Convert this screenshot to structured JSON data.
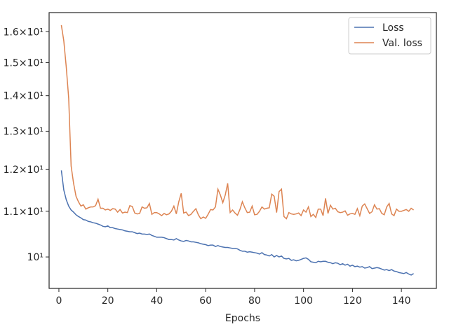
{
  "chart_data": {
    "type": "line",
    "xlabel": "Epochs",
    "yscale": "log",
    "legend": "upper right",
    "x": [
      1,
      2,
      3,
      4,
      5,
      6,
      7,
      8,
      9,
      10,
      11,
      12,
      13,
      14,
      15,
      16,
      17,
      18,
      19,
      20,
      21,
      22,
      23,
      24,
      25,
      26,
      27,
      28,
      29,
      30,
      31,
      32,
      33,
      34,
      35,
      36,
      37,
      38,
      39,
      40,
      41,
      42,
      43,
      44,
      45,
      46,
      47,
      48,
      49,
      50,
      51,
      52,
      53,
      54,
      55,
      56,
      57,
      58,
      59,
      60,
      61,
      62,
      63,
      64,
      65,
      66,
      67,
      68,
      69,
      70,
      71,
      72,
      73,
      74,
      75,
      76,
      77,
      78,
      79,
      80,
      81,
      82,
      83,
      84,
      85,
      86,
      87,
      88,
      89,
      90,
      91,
      92,
      93,
      94,
      95,
      96,
      97,
      98,
      99,
      100,
      101,
      102,
      103,
      104,
      105,
      106,
      107,
      108,
      109,
      110,
      111,
      112,
      113,
      114,
      115,
      116,
      117,
      118,
      119,
      120,
      121,
      122,
      123,
      124,
      125,
      126,
      127,
      128,
      129,
      130,
      131,
      132,
      133,
      134,
      135,
      136,
      137,
      138,
      139,
      140,
      141,
      142,
      143,
      144,
      145
    ],
    "series": [
      {
        "name": "Loss",
        "color": "#4c72b0",
        "values": [
          11.98,
          11.5,
          11.27,
          11.12,
          11.03,
          10.98,
          10.92,
          10.88,
          10.85,
          10.81,
          10.8,
          10.77,
          10.76,
          10.74,
          10.73,
          10.71,
          10.69,
          10.66,
          10.65,
          10.67,
          10.63,
          10.63,
          10.61,
          10.6,
          10.59,
          10.58,
          10.56,
          10.55,
          10.54,
          10.54,
          10.52,
          10.5,
          10.51,
          10.49,
          10.49,
          10.48,
          10.49,
          10.46,
          10.44,
          10.42,
          10.42,
          10.42,
          10.41,
          10.39,
          10.37,
          10.37,
          10.36,
          10.39,
          10.36,
          10.34,
          10.33,
          10.35,
          10.34,
          10.32,
          10.32,
          10.31,
          10.3,
          10.28,
          10.27,
          10.26,
          10.24,
          10.25,
          10.25,
          10.22,
          10.24,
          10.22,
          10.21,
          10.2,
          10.2,
          10.19,
          10.18,
          10.18,
          10.17,
          10.14,
          10.12,
          10.12,
          10.1,
          10.11,
          10.1,
          10.09,
          10.08,
          10.06,
          10.09,
          10.05,
          10.04,
          10.02,
          10.05,
          10.0,
          10.03,
          10.0,
          10.02,
          9.97,
          9.96,
          9.97,
          9.93,
          9.94,
          9.92,
          9.93,
          9.95,
          9.97,
          9.98,
          9.95,
          9.9,
          9.89,
          9.88,
          9.91,
          9.9,
          9.91,
          9.91,
          9.89,
          9.88,
          9.86,
          9.88,
          9.87,
          9.84,
          9.86,
          9.83,
          9.85,
          9.81,
          9.83,
          9.8,
          9.81,
          9.79,
          9.8,
          9.77,
          9.78,
          9.8,
          9.76,
          9.77,
          9.78,
          9.77,
          9.75,
          9.73,
          9.74,
          9.72,
          9.74,
          9.71,
          9.7,
          9.68,
          9.67,
          9.66,
          9.68,
          9.65,
          9.63,
          9.66
        ]
      },
      {
        "name": "Val. loss",
        "color": "#dd8452",
        "values": [
          16.22,
          15.7,
          14.87,
          13.93,
          12.09,
          11.66,
          11.35,
          11.22,
          11.12,
          11.15,
          11.05,
          11.08,
          11.1,
          11.1,
          11.13,
          11.28,
          11.07,
          11.07,
          11.03,
          11.05,
          11.02,
          11.06,
          11.05,
          10.98,
          11.04,
          10.96,
          10.98,
          10.97,
          11.13,
          11.11,
          10.96,
          10.94,
          10.95,
          11.1,
          11.07,
          11.08,
          11.18,
          10.93,
          10.97,
          10.97,
          10.94,
          10.9,
          10.95,
          10.92,
          10.94,
          11.0,
          11.12,
          10.94,
          11.22,
          11.42,
          10.96,
          10.98,
          10.9,
          10.93,
          11.0,
          11.06,
          10.92,
          10.83,
          10.87,
          10.84,
          10.93,
          11.04,
          11.03,
          11.1,
          11.52,
          11.38,
          11.2,
          11.38,
          11.66,
          10.97,
          11.03,
          10.96,
          10.91,
          11.04,
          11.22,
          11.08,
          10.97,
          10.98,
          11.12,
          10.92,
          10.93,
          11.0,
          11.1,
          11.05,
          11.07,
          11.08,
          11.4,
          11.35,
          10.97,
          11.46,
          11.52,
          10.88,
          10.83,
          10.97,
          10.94,
          10.93,
          10.94,
          10.96,
          10.9,
          11.03,
          10.98,
          11.1,
          10.88,
          10.93,
          10.86,
          11.05,
          11.05,
          10.9,
          11.3,
          10.95,
          11.14,
          11.05,
          11.07,
          10.99,
          10.97,
          10.98,
          11.01,
          10.91,
          10.94,
          10.95,
          10.93,
          11.06,
          10.9,
          11.12,
          11.17,
          11.06,
          10.95,
          10.99,
          11.15,
          11.05,
          11.06,
          10.95,
          10.92,
          11.1,
          11.18,
          10.94,
          10.9,
          11.05,
          11.0,
          11.0,
          11.02,
          11.04,
          11.0,
          11.07,
          11.03
        ]
      }
    ],
    "xlim": [
      -4,
      154.3
    ],
    "xticks": [
      0,
      20,
      40,
      60,
      80,
      100,
      120,
      140
    ],
    "ylim": [
      9.365,
      16.65
    ],
    "yticks": [
      {
        "value": 10,
        "label": "10¹"
      },
      {
        "value": 11,
        "label": "1.1×10¹"
      },
      {
        "value": 12,
        "label": "1.2×10¹"
      },
      {
        "value": 13,
        "label": "1.3×10¹"
      },
      {
        "value": 14,
        "label": "1.4×10¹"
      },
      {
        "value": 15,
        "label": "1.5×10¹"
      },
      {
        "value": 16,
        "label": "1.6×10¹"
      }
    ]
  }
}
